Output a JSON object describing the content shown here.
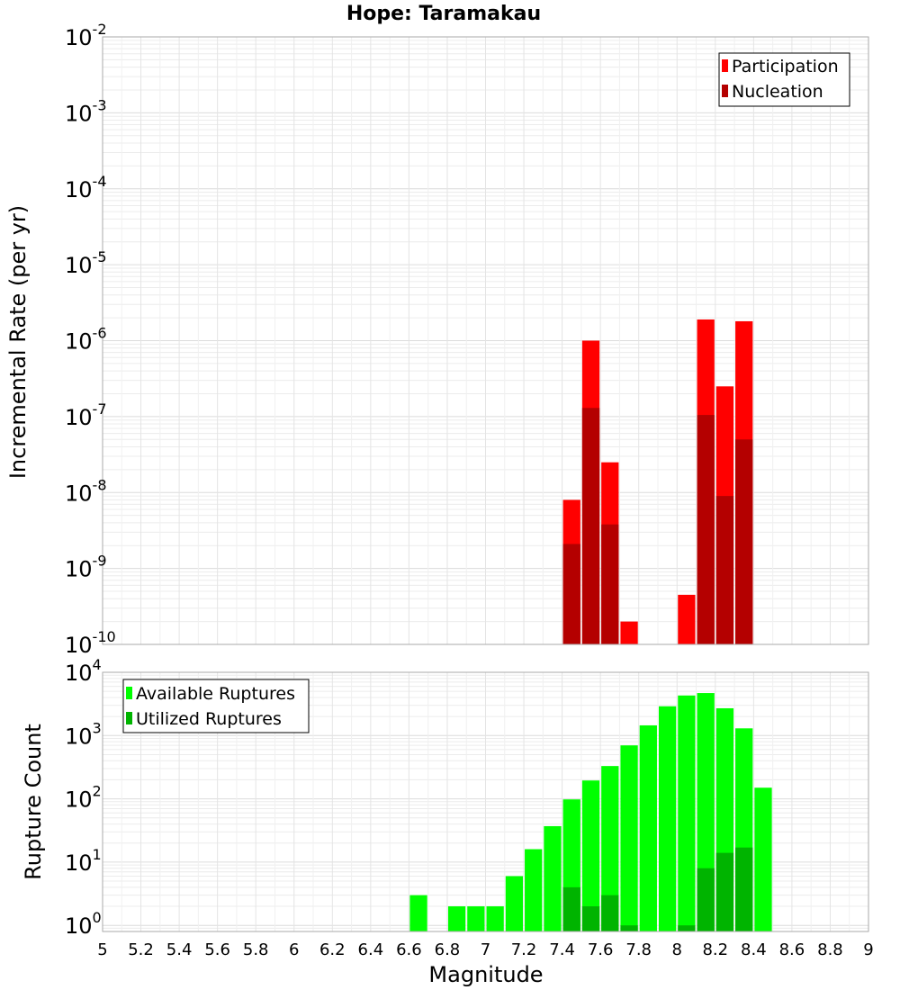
{
  "chart_data": [
    {
      "type": "bar",
      "title": "Hope: Taramakau",
      "xlabel": "",
      "ylabel": "Incremental Rate (per yr)",
      "yscale": "log",
      "ylim": [
        1e-10,
        0.01
      ],
      "xlim": [
        5,
        9
      ],
      "grid": true,
      "legend": "top-right",
      "x": [
        7.45,
        7.55,
        7.65,
        7.75,
        8.05,
        8.15,
        8.25,
        8.35
      ],
      "series": [
        {
          "name": "Participation",
          "color": "#ff0000",
          "values": [
            8e-09,
            1e-06,
            2.5e-08,
            2e-10,
            4.5e-10,
            1.9e-06,
            2.5e-07,
            1.8e-06
          ]
        },
        {
          "name": "Nucleation",
          "color": "#b40000",
          "values": [
            2.1e-09,
            1.3e-07,
            3.8e-09,
            null,
            null,
            1.05e-07,
            9e-09,
            5e-08
          ]
        }
      ]
    },
    {
      "type": "bar",
      "title": "",
      "xlabel": "Magnitude",
      "ylabel": "Rupture Count",
      "yscale": "log",
      "ylim": [
        0.8,
        10000
      ],
      "xlim": [
        5,
        9
      ],
      "grid": true,
      "legend": "top-left",
      "x_ticks": [
        "5",
        "5.2",
        "5.4",
        "5.6",
        "5.8",
        "6",
        "6.2",
        "6.4",
        "6.6",
        "6.8",
        "7",
        "7.2",
        "7.4",
        "7.6",
        "7.8",
        "8",
        "8.2",
        "8.4",
        "8.6",
        "8.8",
        "9"
      ],
      "x": [
        6.65,
        6.85,
        6.95,
        7.05,
        7.15,
        7.25,
        7.35,
        7.45,
        7.55,
        7.65,
        7.75,
        7.85,
        7.95,
        8.05,
        8.15,
        8.25,
        8.35,
        8.45
      ],
      "series": [
        {
          "name": "Available Ruptures",
          "color": "#00ff00",
          "values": [
            3,
            2,
            2,
            2,
            6,
            16,
            37,
            98,
            195,
            330,
            700,
            1450,
            2900,
            4300,
            4700,
            2700,
            1300,
            150
          ]
        },
        {
          "name": "Utilized Ruptures",
          "color": "#00b400",
          "values": [
            null,
            null,
            null,
            null,
            null,
            null,
            null,
            4,
            2,
            3,
            1,
            null,
            null,
            1,
            8,
            14,
            17,
            null
          ]
        }
      ]
    }
  ]
}
